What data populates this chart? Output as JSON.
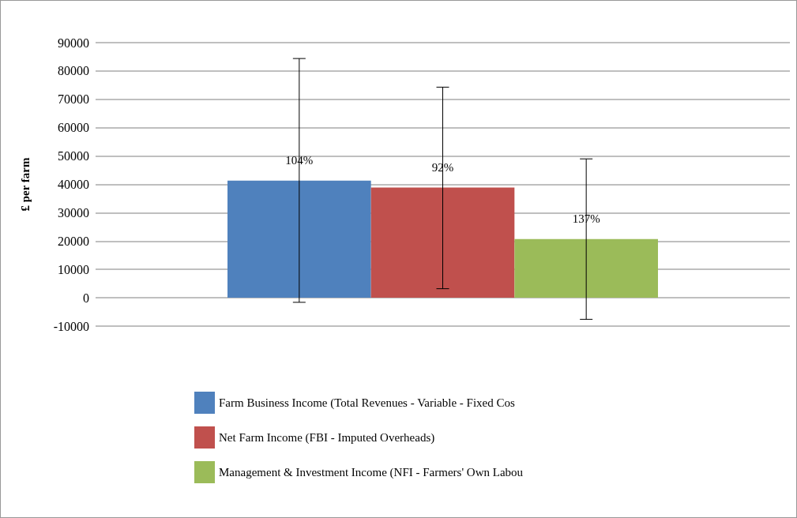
{
  "chart_data": {
    "type": "bar",
    "ylabel": "£ per farm",
    "categories": [
      null
    ],
    "series": [
      {
        "name": "Farm Business Income (Total Revenues - Variable - Fixed Cos",
        "color": "#4f81bd",
        "values": [
          41300
        ],
        "errors": [
          [
            -1600,
            84400
          ]
        ]
      },
      {
        "name": "Net Farm Income (FBI - Imputed Overheads)",
        "color": "#c0504d",
        "values": [
          38900
        ],
        "errors": [
          [
            3200,
            74300
          ]
        ]
      },
      {
        "name": "Management & Investment Income (NFI - Farmers' Own Labou",
        "color": "#9bbb59",
        "values": [
          20700
        ],
        "errors": [
          [
            -7600,
            49000
          ]
        ]
      }
    ],
    "annotations": [
      "104%",
      "92%",
      "137%"
    ],
    "ylim": [
      -10000,
      90000
    ],
    "yticks": [
      -10000,
      0,
      10000,
      20000,
      30000,
      40000,
      50000,
      60000,
      70000,
      80000,
      90000
    ],
    "grid": "y",
    "legend": "bottom"
  }
}
